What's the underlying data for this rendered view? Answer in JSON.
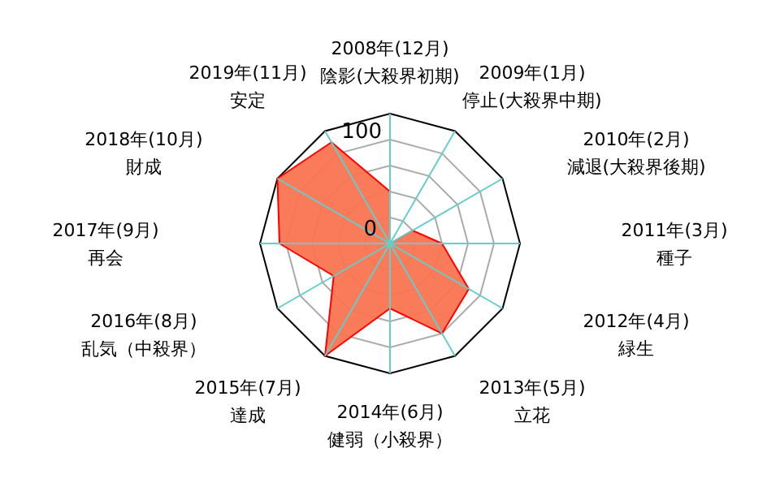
{
  "chart_data": {
    "type": "radar",
    "categories": [
      "2008年(12月)\n陰影(大殺界初期)",
      "2009年(1月)\n停止(大殺界中期)",
      "2010年(2月)\n減退(大殺界後期)",
      "2011年(3月)\n種子",
      "2012年(4月)\n緑生",
      "2013年(5月)\n立花",
      "2014年(6月)\n健弱（小殺界）",
      "2015年(7月)\n達成",
      "2016年(8月)\n乱気（中殺界）",
      "2017年(9月)\n再会",
      "2018年(10月)\n財成",
      "2019年(11月)\n安定"
    ],
    "series": [
      {
        "color": "#fa7450",
        "values": [
          40,
          0,
          20,
          40,
          70,
          80,
          50,
          100,
          50,
          85,
          100,
          90
        ]
      }
    ],
    "ylim": [
      0,
      100
    ],
    "yticks": [
      0,
      100
    ],
    "grid": true
  }
}
